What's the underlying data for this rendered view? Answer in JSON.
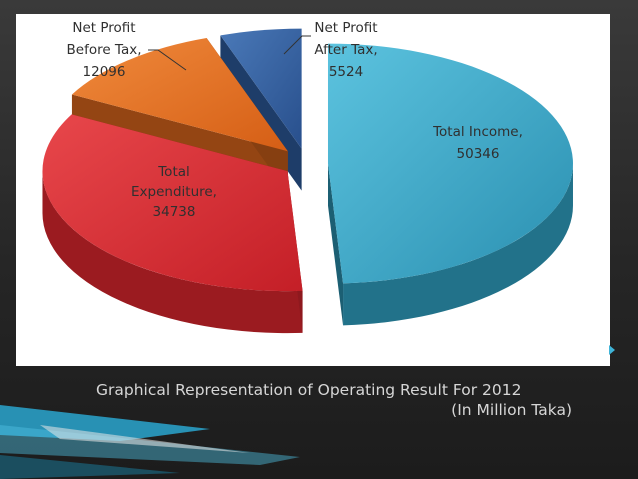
{
  "colors": {
    "income": "#2f9fbf",
    "expenditure": "#d7262d",
    "before_tax": "#e0691d",
    "after_tax": "#2d5c9f",
    "accent": "#3fb4d8"
  },
  "caption": {
    "line1": "Graphical Representation of Operating Result For 2012",
    "line2": "(In Million Taka)"
  },
  "chart_data": {
    "type": "pie",
    "style": "3D exploded pie",
    "title": "",
    "slices": [
      {
        "label_lines": [
          "Total Income,",
          "50346"
        ],
        "value": 50346,
        "color": "#2f9fbf"
      },
      {
        "label_lines": [
          "Total",
          "Expenditure,",
          "34738"
        ],
        "value": 34738,
        "color": "#d7262d"
      },
      {
        "label_lines": [
          "Net Profit",
          "Before Tax,",
          "12096"
        ],
        "value": 12096,
        "color": "#e0691d"
      },
      {
        "label_lines": [
          "Net Profit",
          "After Tax,",
          "5524"
        ],
        "value": 5524,
        "color": "#2d5c9f"
      }
    ]
  }
}
